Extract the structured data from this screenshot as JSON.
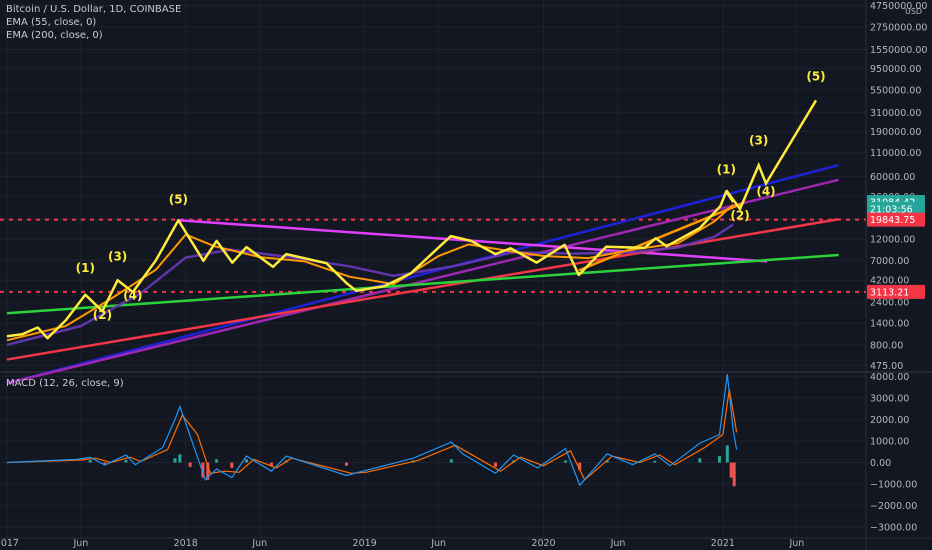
{
  "legend": {
    "title": "Bitcoin / U.S. Dollar, 1D, COINBASE",
    "ema55": "EMA (55, close, 0)",
    "ema200": "EMA (200, close, 0)",
    "macd": "MACD (12, 26, close, 9)"
  },
  "colors": {
    "background": "#131722",
    "price": "#ffeb3b",
    "ema55": "#ff9800",
    "ema200": "#673ab7",
    "blue_trend": "#1e22d8",
    "purple_trend": "#9c27b0",
    "magenta_trend": "#e040fb",
    "red_trend": "#f23645",
    "green_trend": "#2bd33a",
    "orange_channel": "#ff9800",
    "support_dashed": "#f23645",
    "macd_line": "#2196f3",
    "signal_line": "#ff6d00",
    "hist_pos": "#26a69a",
    "hist_neg": "#ef5350"
  },
  "chart_data": [
    {
      "type": "line",
      "scale": "log",
      "currency": "USD",
      "x_ticks": [
        "2017",
        "Jun",
        "2018",
        "Jun",
        "2019",
        "Jun",
        "2020",
        "Jun",
        "2021",
        "Jun"
      ],
      "y_ticks": [
        475,
        800,
        1400,
        2400,
        4200,
        7000,
        12000,
        20000,
        36000,
        60000,
        110000,
        190000,
        310000,
        550000,
        950000,
        1550000,
        2750000,
        4750000
      ],
      "y_tick_labels": [
        "475.00",
        "800.00",
        "1400.00",
        "2400.00",
        "4200.00",
        "7000.00",
        "12000.00",
        "20000.00",
        "36000.00",
        "60000.00",
        "110000.00",
        "190000.00",
        "310000.00",
        "550000.00",
        "950000.00",
        "1550000.00",
        "2750000.00",
        "4750000.00"
      ],
      "price_tags": [
        {
          "label": "31084.42",
          "value": 31084.42,
          "color": "#26a69a"
        },
        {
          "label": "21:03:56",
          "value": 26000,
          "color": "#26a69a"
        },
        {
          "label": "19843.75",
          "value": 19843.75,
          "color": "#f23645"
        },
        {
          "label": "3113.21",
          "value": 3113.21,
          "color": "#f23645"
        }
      ],
      "horizontal_levels": [
        19843.75,
        3113.21
      ],
      "series": [
        {
          "name": "Bitcoin / U.S. Dollar, 1D, COINBASE",
          "key": "price",
          "points": [
            [
              "2017-01-01",
              1000
            ],
            [
              "2017-02-01",
              1050
            ],
            [
              "2017-03-05",
              1250
            ],
            [
              "2017-03-25",
              950
            ],
            [
              "2017-05-01",
              1500
            ],
            [
              "2017-06-10",
              2900
            ],
            [
              "2017-07-15",
              1900
            ],
            [
              "2017-08-15",
              4200
            ],
            [
              "2017-09-15",
              3100
            ],
            [
              "2017-11-01",
              7000
            ],
            [
              "2017-12-17",
              19500
            ],
            [
              "2018-02-06",
              6900
            ],
            [
              "2018-03-05",
              11500
            ],
            [
              "2018-04-06",
              6600
            ],
            [
              "2018-05-05",
              9800
            ],
            [
              "2018-06-28",
              5900
            ],
            [
              "2018-07-25",
              8200
            ],
            [
              "2018-10-15",
              6500
            ],
            [
              "2018-11-25",
              3900
            ],
            [
              "2018-12-15",
              3200
            ],
            [
              "2019-02-10",
              3600
            ],
            [
              "2019-04-05",
              5000
            ],
            [
              "2019-06-26",
              13000
            ],
            [
              "2019-08-06",
              11500
            ],
            [
              "2019-09-25",
              8200
            ],
            [
              "2019-10-26",
              9500
            ],
            [
              "2019-12-18",
              6600
            ],
            [
              "2020-02-13",
              10400
            ],
            [
              "2020-03-13",
              4800
            ],
            [
              "2020-05-08",
              9900
            ],
            [
              "2020-07-25",
              9600
            ],
            [
              "2020-08-17",
              12300
            ],
            [
              "2020-09-08",
              10000
            ],
            [
              "2020-11-15",
              16000
            ],
            [
              "2020-12-27",
              28000
            ],
            [
              "2021-01-08",
              41000
            ],
            [
              "2021-01-22",
              31084.42
            ]
          ]
        },
        {
          "name": "EMA (55, close, 0)",
          "key": "ema55",
          "points": [
            [
              "2017-01-01",
              900
            ],
            [
              "2017-05-01",
              1300
            ],
            [
              "2017-08-01",
              2600
            ],
            [
              "2017-11-01",
              5500
            ],
            [
              "2018-01-01",
              13500
            ],
            [
              "2018-03-01",
              10000
            ],
            [
              "2018-06-01",
              7600
            ],
            [
              "2018-09-01",
              6800
            ],
            [
              "2018-12-01",
              4600
            ],
            [
              "2019-03-01",
              3800
            ],
            [
              "2019-06-01",
              7800
            ],
            [
              "2019-08-01",
              10500
            ],
            [
              "2019-11-01",
              8700
            ],
            [
              "2020-01-01",
              7800
            ],
            [
              "2020-04-01",
              7400
            ],
            [
              "2020-07-01",
              9200
            ],
            [
              "2020-10-01",
              10800
            ],
            [
              "2020-12-15",
              19000
            ],
            [
              "2021-01-22",
              29000
            ]
          ]
        },
        {
          "name": "EMA (200, close, 0)",
          "key": "ema200",
          "points": [
            [
              "2017-01-01",
              800
            ],
            [
              "2017-06-01",
              1300
            ],
            [
              "2017-10-01",
              3000
            ],
            [
              "2018-01-01",
              7500
            ],
            [
              "2018-04-01",
              9200
            ],
            [
              "2018-08-01",
              7600
            ],
            [
              "2018-12-01",
              6000
            ],
            [
              "2019-03-01",
              4700
            ],
            [
              "2019-07-01",
              6000
            ],
            [
              "2019-11-01",
              8600
            ],
            [
              "2020-03-01",
              8300
            ],
            [
              "2020-07-01",
              8600
            ],
            [
              "2020-10-01",
              9700
            ],
            [
              "2020-12-15",
              12800
            ],
            [
              "2021-01-22",
              17500
            ]
          ]
        }
      ],
      "trend_lines": [
        {
          "name": "blue",
          "from": [
            "2017-01-01",
            300
          ],
          "to": [
            "2021-08-25",
            80000
          ]
        },
        {
          "name": "purple",
          "from": [
            "2017-01-01",
            300
          ],
          "to": [
            "2021-08-25",
            55000
          ]
        },
        {
          "name": "magenta",
          "from": [
            "2017-12-17",
            19500
          ],
          "to": [
            "2021-04-01",
            6800
          ]
        },
        {
          "name": "red",
          "from": [
            "2017-01-01",
            550
          ],
          "to": [
            "2021-08-25",
            20000
          ]
        },
        {
          "name": "green",
          "from": [
            "2017-01-01",
            1800
          ],
          "to": [
            "2021-08-25",
            8000
          ]
        },
        {
          "name": "orange_channel",
          "from": [
            "2020-03-13",
            5400
          ],
          "to": [
            "2021-02-10",
            30000
          ]
        }
      ],
      "wave_path_2021": [
        [
          "2021-01-08",
          42000
        ],
        [
          "2021-02-05",
          26000
        ],
        [
          "2021-03-15",
          80000
        ],
        [
          "2021-03-30",
          50000
        ],
        [
          "2021-07-10",
          420000
        ]
      ],
      "wave_labels": [
        {
          "text": "(1)",
          "at": [
            "2017-06-10",
            5200
          ]
        },
        {
          "text": "(2)",
          "at": [
            "2017-07-15",
            1550
          ]
        },
        {
          "text": "(3)",
          "at": [
            "2017-08-15",
            7000
          ]
        },
        {
          "text": "(4)",
          "at": [
            "2017-09-15",
            2550
          ]
        },
        {
          "text": "(5)",
          "at": [
            "2017-12-17",
            30000
          ]
        },
        {
          "text": "(1)",
          "at": [
            "2021-01-08",
            65000
          ]
        },
        {
          "text": "(2)",
          "at": [
            "2021-02-05",
            20000
          ]
        },
        {
          "text": "(3)",
          "at": [
            "2021-03-15",
            135000
          ]
        },
        {
          "text": "(4)",
          "at": [
            "2021-03-30",
            37000
          ]
        },
        {
          "text": "(5)",
          "at": [
            "2021-07-10",
            700000
          ]
        }
      ]
    },
    {
      "type": "line",
      "name": "MACD (12, 26, close, 9)",
      "ylim": [
        -3500,
        4200
      ],
      "y_ticks": [
        -3000,
        -2000,
        -1000,
        0,
        1000,
        2000,
        3000,
        4000
      ],
      "y_tick_labels": [
        "−3000.00",
        "−2000.00",
        "−1000.00",
        "0.00",
        "1000.00",
        "2000.00",
        "3000.00",
        "4000.00"
      ],
      "series": [
        {
          "name": "MACD",
          "key": "macd",
          "points": [
            [
              "2017-01-01",
              0
            ],
            [
              "2017-05-25",
              150
            ],
            [
              "2017-06-20",
              250
            ],
            [
              "2017-07-20",
              -120
            ],
            [
              "2017-09-01",
              350
            ],
            [
              "2017-09-20",
              -100
            ],
            [
              "2017-11-15",
              700
            ],
            [
              "2017-12-10",
              2000
            ],
            [
              "2017-12-20",
              2600
            ],
            [
              "2018-01-15",
              900
            ],
            [
              "2018-02-10",
              -800
            ],
            [
              "2018-03-05",
              -300
            ],
            [
              "2018-04-05",
              -700
            ],
            [
              "2018-05-05",
              300
            ],
            [
              "2018-06-25",
              -400
            ],
            [
              "2018-07-25",
              300
            ],
            [
              "2018-11-25",
              -600
            ],
            [
              "2018-12-20",
              -450
            ],
            [
              "2019-04-10",
              200
            ],
            [
              "2019-06-27",
              950
            ],
            [
              "2019-07-20",
              400
            ],
            [
              "2019-09-25",
              -500
            ],
            [
              "2019-11-01",
              350
            ],
            [
              "2019-12-20",
              -250
            ],
            [
              "2020-02-15",
              650
            ],
            [
              "2020-03-15",
              -1050
            ],
            [
              "2020-05-10",
              400
            ],
            [
              "2020-07-01",
              -100
            ],
            [
              "2020-08-15",
              400
            ],
            [
              "2020-09-15",
              -150
            ],
            [
              "2020-11-15",
              900
            ],
            [
              "2020-12-25",
              1300
            ],
            [
              "2021-01-10",
              4100
            ],
            [
              "2021-01-22",
              1500
            ],
            [
              "2021-01-29",
              600
            ]
          ]
        },
        {
          "name": "Signal",
          "key": "signal",
          "points": [
            [
              "2017-01-01",
              0
            ],
            [
              "2017-06-01",
              120
            ],
            [
              "2017-07-01",
              200
            ],
            [
              "2017-08-01",
              0
            ],
            [
              "2017-09-10",
              250
            ],
            [
              "2017-10-01",
              50
            ],
            [
              "2017-11-25",
              600
            ],
            [
              "2017-12-25",
              2200
            ],
            [
              "2018-01-25",
              1300
            ],
            [
              "2018-02-20",
              -500
            ],
            [
              "2018-03-20",
              -400
            ],
            [
              "2018-04-20",
              -450
            ],
            [
              "2018-05-20",
              150
            ],
            [
              "2018-07-05",
              -250
            ],
            [
              "2018-08-05",
              200
            ],
            [
              "2018-12-05",
              -500
            ],
            [
              "2019-01-05",
              -450
            ],
            [
              "2019-04-20",
              100
            ],
            [
              "2019-07-05",
              800
            ],
            [
              "2019-08-01",
              450
            ],
            [
              "2019-10-05",
              -400
            ],
            [
              "2019-11-15",
              250
            ],
            [
              "2020-01-01",
              -150
            ],
            [
              "2020-02-25",
              550
            ],
            [
              "2020-03-25",
              -800
            ],
            [
              "2020-05-20",
              300
            ],
            [
              "2020-07-15",
              0
            ],
            [
              "2020-08-25",
              350
            ],
            [
              "2020-09-25",
              -100
            ],
            [
              "2020-11-25",
              700
            ],
            [
              "2021-01-01",
              1300
            ],
            [
              "2021-01-14",
              3400
            ],
            [
              "2021-01-29",
              1400
            ]
          ]
        }
      ],
      "histogram": [
        [
          "2017-06-20",
          120
        ],
        [
          "2017-07-20",
          -120
        ],
        [
          "2017-09-01",
          120
        ],
        [
          "2017-12-10",
          200
        ],
        [
          "2017-12-20",
          380
        ],
        [
          "2018-01-10",
          -200
        ],
        [
          "2018-02-05",
          -700
        ],
        [
          "2018-02-15",
          -800
        ],
        [
          "2018-03-05",
          150
        ],
        [
          "2018-04-05",
          -250
        ],
        [
          "2018-05-05",
          150
        ],
        [
          "2018-06-25",
          -150
        ],
        [
          "2018-07-25",
          100
        ],
        [
          "2018-11-25",
          -150
        ],
        [
          "2019-04-10",
          100
        ],
        [
          "2019-06-27",
          150
        ],
        [
          "2019-09-25",
          -200
        ],
        [
          "2019-11-01",
          100
        ],
        [
          "2020-02-15",
          100
        ],
        [
          "2020-03-15",
          -350
        ],
        [
          "2020-05-10",
          100
        ],
        [
          "2020-08-15",
          80
        ],
        [
          "2020-11-15",
          200
        ],
        [
          "2020-12-25",
          300
        ],
        [
          "2021-01-10",
          800
        ],
        [
          "2021-01-18",
          -700
        ],
        [
          "2021-01-24",
          -1100
        ]
      ]
    }
  ]
}
